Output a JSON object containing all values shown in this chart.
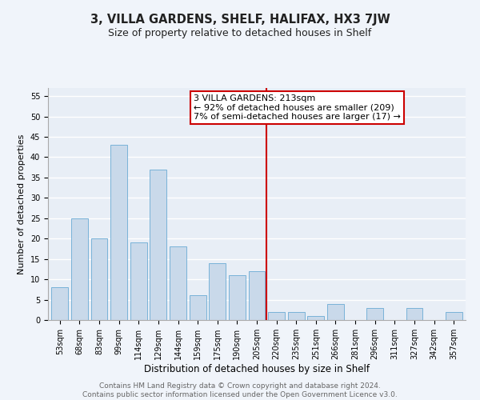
{
  "title": "3, VILLA GARDENS, SHELF, HALIFAX, HX3 7JW",
  "subtitle": "Size of property relative to detached houses in Shelf",
  "xlabel": "Distribution of detached houses by size in Shelf",
  "ylabel": "Number of detached properties",
  "bar_labels": [
    "53sqm",
    "68sqm",
    "83sqm",
    "99sqm",
    "114sqm",
    "129sqm",
    "144sqm",
    "159sqm",
    "175sqm",
    "190sqm",
    "205sqm",
    "220sqm",
    "235sqm",
    "251sqm",
    "266sqm",
    "281sqm",
    "296sqm",
    "311sqm",
    "327sqm",
    "342sqm",
    "357sqm"
  ],
  "bar_values": [
    8,
    25,
    20,
    43,
    19,
    37,
    18,
    6,
    14,
    11,
    12,
    2,
    2,
    1,
    4,
    0,
    3,
    0,
    3,
    0,
    2
  ],
  "bar_color": "#c9d9ea",
  "bar_edge_color": "#6aaad4",
  "annotation_text_line1": "3 VILLA GARDENS: 213sqm",
  "annotation_text_line2": "← 92% of detached houses are smaller (209)",
  "annotation_text_line3": "7% of semi-detached houses are larger (17) →",
  "annotation_box_color": "#cc0000",
  "vline_color": "#cc0000",
  "vline_x": 10.5,
  "ylim": [
    0,
    57
  ],
  "yticks": [
    0,
    5,
    10,
    15,
    20,
    25,
    30,
    35,
    40,
    45,
    50,
    55
  ],
  "footer_text": "Contains HM Land Registry data © Crown copyright and database right 2024.\nContains public sector information licensed under the Open Government Licence v3.0.",
  "fig_bg_color": "#f0f4fa",
  "plot_bg_color": "#e8eef6",
  "grid_color": "#ffffff",
  "title_fontsize": 10.5,
  "subtitle_fontsize": 9,
  "xlabel_fontsize": 8.5,
  "ylabel_fontsize": 8,
  "tick_fontsize": 7,
  "annotation_fontsize": 8,
  "footer_fontsize": 6.5
}
